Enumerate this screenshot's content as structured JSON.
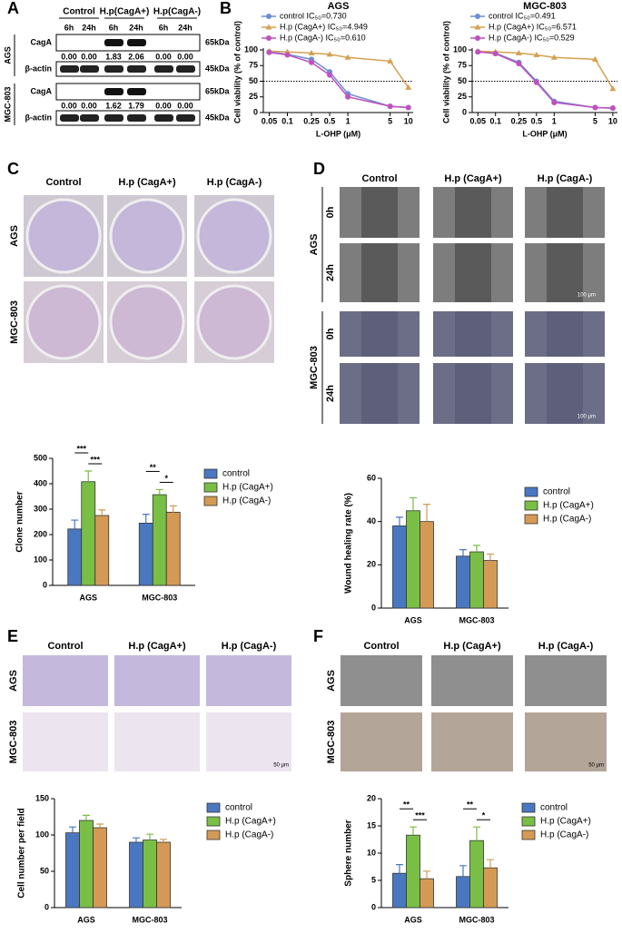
{
  "figure_labels": [
    "A",
    "B",
    "C",
    "D",
    "E",
    "F"
  ],
  "blot": {
    "groups": [
      {
        "label": "Control",
        "times": [
          "6h",
          "24h"
        ]
      },
      {
        "label": "H.p(CagA+)",
        "times": [
          "6h",
          "24h"
        ]
      },
      {
        "label": "H.p(CagA-)",
        "times": [
          "6h",
          "24h"
        ]
      }
    ],
    "cells": [
      {
        "name": "AGS",
        "rows": [
          {
            "protein": "CagA",
            "kda": "65kDa",
            "ratios": [
              "0.00",
              "0.00",
              "1.83",
              "2.06",
              "0.00",
              "0.00"
            ]
          },
          {
            "protein": "β-actin",
            "kda": "45kDa"
          }
        ]
      },
      {
        "name": "MGC-803",
        "rows": [
          {
            "protein": "CagA",
            "kda": "65kDa",
            "ratios": [
              "0.00",
              "0.00",
              "1.62",
              "1.79",
              "0.00",
              "0.00"
            ]
          },
          {
            "protein": "β-actin",
            "kda": "45kDa"
          }
        ]
      }
    ]
  },
  "colony": {
    "columns": [
      "Control",
      "H.p (CagA+)",
      "H.p (CagA-)"
    ],
    "rows": [
      "AGS",
      "MGC-803"
    ]
  },
  "wound": {
    "columns": [
      "Control",
      "H.p (CagA+)",
      "H.p (CagA-)"
    ],
    "rows": [
      {
        "name": "AGS",
        "times": [
          "0h",
          "24h"
        ]
      },
      {
        "name": "MGC-803",
        "times": [
          "0h",
          "24h"
        ]
      }
    ],
    "scale_bars": [
      "100 μm",
      "100 μm"
    ]
  },
  "transwell": {
    "columns": [
      "Control",
      "H.p (CagA+)",
      "H.p (CagA-)"
    ],
    "rows": [
      "AGS",
      "MGC-803"
    ],
    "scale_bar": "50 μm"
  },
  "sphere": {
    "columns": [
      "Control",
      "H.p (CagA+)",
      "H.p (CagA-)"
    ],
    "rows": [
      "AGS",
      "MGC-803"
    ],
    "scale_bar": "50 μm"
  },
  "chart_data": [
    {
      "type": "line",
      "title": "AGS",
      "xlabel": "L-OHP (μM)",
      "ylabel": "Cell viability (% of control)",
      "xscale": "log",
      "x": [
        0.05,
        0.1,
        0.25,
        0.5,
        1,
        5,
        10
      ],
      "xlim": [
        0.04,
        12
      ],
      "xticks": [
        0.05,
        0.1,
        0.25,
        0.5,
        1,
        5,
        10
      ],
      "ylim": [
        0,
        100
      ],
      "yticks": [
        0,
        25,
        50,
        75,
        100
      ],
      "hline": 50,
      "series": [
        {
          "name": "control IC₅₀=0.730",
          "color": "#6a8fd0",
          "marker": "circle",
          "values": [
            97,
            93,
            85,
            65,
            30,
            10,
            8
          ]
        },
        {
          "name": "H.p (CagA+) IC₅₀=4.949",
          "color": "#d4a050",
          "marker": "triangle",
          "values": [
            98,
            97,
            95,
            93,
            88,
            82,
            40
          ]
        },
        {
          "name": "H.p (CagA-) IC₅₀=0.610",
          "color": "#c050c0",
          "marker": "circle",
          "values": [
            96,
            92,
            80,
            60,
            25,
            10,
            8
          ]
        }
      ]
    },
    {
      "type": "line",
      "title": "MGC-803",
      "xlabel": "L-OHP (μM)",
      "ylabel": "Cell viability (% of control)",
      "xscale": "log",
      "x": [
        0.05,
        0.1,
        0.25,
        0.5,
        1,
        5,
        10
      ],
      "xlim": [
        0.04,
        12
      ],
      "xticks": [
        0.05,
        0.1,
        0.25,
        0.5,
        1,
        5,
        10
      ],
      "ylim": [
        0,
        100
      ],
      "yticks": [
        0,
        25,
        50,
        75,
        100
      ],
      "hline": 50,
      "series": [
        {
          "name": "control IC₅₀=0.491",
          "color": "#6a8fd0",
          "marker": "circle",
          "values": [
            97,
            95,
            80,
            50,
            18,
            8,
            7
          ]
        },
        {
          "name": "H.p (CagA+) IC₅₀=6.571",
          "color": "#d4a050",
          "marker": "triangle",
          "values": [
            98,
            97,
            95,
            92,
            88,
            85,
            38
          ]
        },
        {
          "name": "H.p (CagA-) IC₅₀=0.529",
          "color": "#c050c0",
          "marker": "circle",
          "values": [
            97,
            94,
            78,
            48,
            16,
            8,
            7
          ]
        }
      ]
    },
    {
      "type": "bar",
      "ylabel": "Clone number",
      "categories": [
        "AGS",
        "MGC-803"
      ],
      "ylim": [
        0,
        500
      ],
      "yticks": [
        0,
        100,
        200,
        300,
        400,
        500
      ],
      "series": [
        {
          "name": "control",
          "color": "#4a78c0",
          "values": [
            222,
            245
          ],
          "errors": [
            35,
            35
          ]
        },
        {
          "name": "H.p (CagA+)",
          "color": "#79bf45",
          "values": [
            408,
            357
          ],
          "errors": [
            42,
            20
          ]
        },
        {
          "name": "H.p (CagA-)",
          "color": "#d49a55",
          "values": [
            275,
            288
          ],
          "errors": [
            22,
            25
          ]
        }
      ],
      "annotations": [
        {
          "label": "***",
          "category": 0,
          "from": 0,
          "to": 1
        },
        {
          "label": "***",
          "category": 0,
          "from": 1,
          "to": 2
        },
        {
          "label": "**",
          "category": 1,
          "from": 0,
          "to": 1
        },
        {
          "label": "*",
          "category": 1,
          "from": 1,
          "to": 2
        }
      ]
    },
    {
      "type": "bar",
      "ylabel": "Wound healing rate (%)",
      "categories": [
        "AGS",
        "MGC-803"
      ],
      "ylim": [
        0,
        60
      ],
      "yticks": [
        0,
        20,
        40,
        60
      ],
      "series": [
        {
          "name": "control",
          "color": "#4a78c0",
          "values": [
            38,
            24
          ],
          "errors": [
            4,
            3
          ]
        },
        {
          "name": "H.p (CagA+)",
          "color": "#79bf45",
          "values": [
            45,
            26
          ],
          "errors": [
            6,
            3
          ]
        },
        {
          "name": "H.p (CagA-)",
          "color": "#d49a55",
          "values": [
            40,
            22
          ],
          "errors": [
            8,
            3
          ]
        }
      ],
      "annotations": []
    },
    {
      "type": "bar",
      "ylabel": "Cell number per field",
      "categories": [
        "AGS",
        "MGC-803"
      ],
      "ylim": [
        0,
        150
      ],
      "yticks": [
        0,
        50,
        100,
        150
      ],
      "series": [
        {
          "name": "control",
          "color": "#4a78c0",
          "values": [
            103,
            90
          ],
          "errors": [
            8,
            6
          ]
        },
        {
          "name": "H.p (CagA+)",
          "color": "#79bf45",
          "values": [
            120,
            93
          ],
          "errors": [
            7,
            8
          ]
        },
        {
          "name": "H.p (CagA-)",
          "color": "#d49a55",
          "values": [
            110,
            90
          ],
          "errors": [
            5,
            4
          ]
        }
      ],
      "annotations": []
    },
    {
      "type": "bar",
      "ylabel": "Sphere number",
      "categories": [
        "AGS",
        "MGC-803"
      ],
      "ylim": [
        0,
        20
      ],
      "yticks": [
        0,
        5,
        10,
        15,
        20
      ],
      "series": [
        {
          "name": "control",
          "color": "#4a78c0",
          "values": [
            6.3,
            5.7
          ],
          "errors": [
            1.6,
            2.0
          ]
        },
        {
          "name": "H.p (CagA+)",
          "color": "#79bf45",
          "values": [
            13.3,
            12.3
          ],
          "errors": [
            1.5,
            2.5
          ]
        },
        {
          "name": "H.p (CagA-)",
          "color": "#d49a55",
          "values": [
            5.3,
            7.3
          ],
          "errors": [
            1.4,
            1.5
          ]
        }
      ],
      "annotations": [
        {
          "label": "**",
          "category": 0,
          "from": 0,
          "to": 1
        },
        {
          "label": "***",
          "category": 0,
          "from": 1,
          "to": 2
        },
        {
          "label": "**",
          "category": 1,
          "from": 0,
          "to": 1
        },
        {
          "label": "*",
          "category": 1,
          "from": 1,
          "to": 2
        }
      ]
    }
  ]
}
